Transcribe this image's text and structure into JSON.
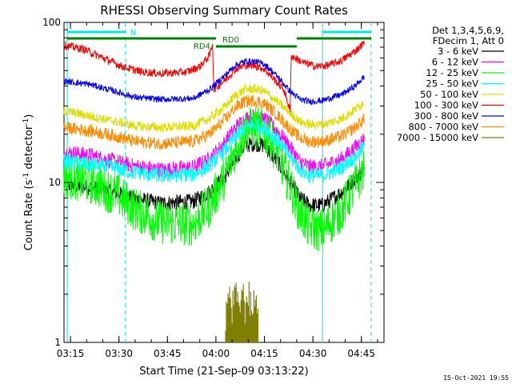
{
  "chart_data": {
    "type": "line",
    "title": "RHESSI Observing Summary Count Rates",
    "xlabel": "Start Time (21-Sep-09 03:13:22)",
    "ylabel_main": "Count Rate (s",
    "ylabel_sup1": "-1",
    "ylabel_mid": " detector",
    "ylabel_sup2": "-1",
    "ylabel_end": ")",
    "yscale": "log",
    "xlim": [
      "03:13",
      "04:52"
    ],
    "ylim": [
      1,
      100
    ],
    "x_ticks": [
      "03:15",
      "03:30",
      "03:45",
      "04:00",
      "04:15",
      "04:30",
      "04:45"
    ],
    "y_ticks": [
      "1",
      "10",
      "100"
    ],
    "legend_header": [
      "Det 1,3,4,5,6,9,",
      "FDecim 1, Att 0"
    ],
    "timestamp": "15-Oct-2021 19:55",
    "annotations": [
      {
        "label": "N",
        "kind": "night",
        "color": "#00e5e5"
      },
      {
        "label": "RD4",
        "kind": "attenuator state",
        "color": "#008000"
      },
      {
        "label": "RD0",
        "kind": "attenuator state",
        "color": "#008000"
      }
    ],
    "event_times": [
      "03:14",
      "03:32",
      "04:33",
      "04:48"
    ],
    "series": [
      {
        "name": "3 - 6 keV",
        "color": "#000000",
        "points": [
          [
            0,
            9.7
          ],
          [
            8,
            9.3
          ],
          [
            16,
            8.6
          ],
          [
            22,
            7.9
          ],
          [
            30,
            7.4
          ],
          [
            40,
            7.6
          ],
          [
            45,
            8.7
          ],
          [
            50,
            11
          ],
          [
            53,
            14
          ],
          [
            56,
            17
          ],
          [
            59,
            17.5
          ],
          [
            62,
            17
          ],
          [
            66,
            13.5
          ],
          [
            70,
            10
          ],
          [
            73,
            8
          ],
          [
            76,
            7.2
          ],
          [
            80,
            7.2
          ],
          [
            86,
            8.7
          ],
          [
            90,
            10.6
          ],
          [
            93,
            12
          ]
        ]
      },
      {
        "name": "6 - 12 keV",
        "color": "#ff00ff",
        "points": [
          [
            0,
            15.5
          ],
          [
            8,
            14.8
          ],
          [
            16,
            13.5
          ],
          [
            22,
            12.6
          ],
          [
            30,
            12
          ],
          [
            40,
            12.4
          ],
          [
            45,
            14
          ],
          [
            50,
            18
          ],
          [
            53,
            22
          ],
          [
            56,
            25
          ],
          [
            59,
            26
          ],
          [
            62,
            25
          ],
          [
            66,
            21
          ],
          [
            70,
            16.5
          ],
          [
            73,
            13.5
          ],
          [
            76,
            12.5
          ],
          [
            80,
            12.6
          ],
          [
            86,
            14
          ],
          [
            90,
            16.5
          ],
          [
            93,
            19
          ]
        ]
      },
      {
        "name": "12 - 25 keV",
        "color": "#00ff00",
        "points": [
          [
            0,
            11
          ],
          [
            8,
            10
          ],
          [
            16,
            8.5
          ],
          [
            22,
            6.8
          ],
          [
            30,
            5.6
          ],
          [
            40,
            5.5
          ],
          [
            45,
            7.2
          ],
          [
            50,
            11
          ],
          [
            53,
            16
          ],
          [
            56,
            21
          ],
          [
            59,
            22
          ],
          [
            62,
            21
          ],
          [
            66,
            15.5
          ],
          [
            70,
            9.5
          ],
          [
            73,
            6.4
          ],
          [
            76,
            5.2
          ],
          [
            80,
            5
          ],
          [
            86,
            6.8
          ],
          [
            90,
            9.5
          ],
          [
            93,
            12
          ]
        ]
      },
      {
        "name": "25 - 50 keV",
        "color": "#00ffff",
        "points": [
          [
            0,
            13.5
          ],
          [
            8,
            13
          ],
          [
            16,
            12.2
          ],
          [
            22,
            11.5
          ],
          [
            30,
            11
          ],
          [
            40,
            11.2
          ],
          [
            45,
            12.8
          ],
          [
            50,
            16
          ],
          [
            53,
            19.5
          ],
          [
            56,
            22
          ],
          [
            59,
            23
          ],
          [
            62,
            22
          ],
          [
            66,
            18.5
          ],
          [
            70,
            14.5
          ],
          [
            73,
            12
          ],
          [
            76,
            11
          ],
          [
            80,
            11
          ],
          [
            86,
            12.5
          ],
          [
            90,
            14.5
          ],
          [
            93,
            16.5
          ]
        ]
      },
      {
        "name": "50 - 100 keV",
        "color": "#dddd00",
        "points": [
          [
            0,
            28
          ],
          [
            8,
            26
          ],
          [
            16,
            24
          ],
          [
            22,
            22.5
          ],
          [
            30,
            22
          ],
          [
            40,
            22.5
          ],
          [
            45,
            25
          ],
          [
            50,
            30
          ],
          [
            53,
            35
          ],
          [
            56,
            38
          ],
          [
            59,
            38.5
          ],
          [
            62,
            37
          ],
          [
            66,
            32
          ],
          [
            70,
            27
          ],
          [
            73,
            24
          ],
          [
            76,
            23
          ],
          [
            80,
            23
          ],
          [
            86,
            25
          ],
          [
            90,
            28.5
          ],
          [
            93,
            32
          ]
        ]
      },
      {
        "name": "100 - 300 keV",
        "color": "#ff0000",
        "points": [
          [
            0,
            72
          ],
          [
            6,
            68
          ],
          [
            12,
            60
          ],
          [
            18,
            53
          ],
          [
            24,
            49
          ],
          [
            30,
            48
          ],
          [
            38,
            49
          ],
          [
            42,
            53
          ],
          [
            45,
            62
          ],
          [
            46,
            75
          ],
          [
            46.3,
            38
          ],
          [
            50,
            44
          ],
          [
            53,
            51
          ],
          [
            56,
            54
          ],
          [
            59,
            54
          ],
          [
            62,
            51
          ],
          [
            66,
            42
          ],
          [
            68,
            38
          ],
          [
            70,
            28
          ],
          [
            70.3,
            62
          ],
          [
            74,
            56
          ],
          [
            78,
            53
          ],
          [
            82,
            54
          ],
          [
            86,
            58
          ],
          [
            90,
            66
          ],
          [
            93,
            75
          ]
        ]
      },
      {
        "name": "300 - 800 keV",
        "color": "#0000ff",
        "points": [
          [
            0,
            43
          ],
          [
            8,
            41
          ],
          [
            16,
            37
          ],
          [
            22,
            34
          ],
          [
            30,
            33
          ],
          [
            40,
            33.5
          ],
          [
            45,
            38
          ],
          [
            50,
            47
          ],
          [
            53,
            54
          ],
          [
            56,
            57
          ],
          [
            59,
            57
          ],
          [
            62,
            55
          ],
          [
            66,
            46
          ],
          [
            70,
            37
          ],
          [
            73,
            33
          ],
          [
            76,
            32
          ],
          [
            80,
            32.5
          ],
          [
            86,
            35.5
          ],
          [
            90,
            40
          ],
          [
            93,
            46
          ]
        ]
      },
      {
        "name": "800 - 7000 keV",
        "color": "#ff8c00",
        "points": [
          [
            0,
            22
          ],
          [
            8,
            21
          ],
          [
            16,
            19.5
          ],
          [
            22,
            18
          ],
          [
            30,
            17.5
          ],
          [
            40,
            18
          ],
          [
            45,
            20
          ],
          [
            50,
            25
          ],
          [
            53,
            29.5
          ],
          [
            56,
            32
          ],
          [
            59,
            32.5
          ],
          [
            62,
            31
          ],
          [
            66,
            26.5
          ],
          [
            70,
            21.5
          ],
          [
            73,
            19
          ],
          [
            76,
            18
          ],
          [
            80,
            18
          ],
          [
            86,
            19.5
          ],
          [
            90,
            22
          ],
          [
            93,
            25
          ]
        ]
      },
      {
        "name": "7000 - 15000 keV",
        "color": "#808000",
        "points": [
          [
            50,
            1.5
          ],
          [
            51,
            2.05
          ],
          [
            52,
            1.6
          ],
          [
            53,
            2.1
          ],
          [
            54,
            1.55
          ],
          [
            55,
            2.15
          ],
          [
            56,
            1.7
          ],
          [
            57,
            2.1
          ],
          [
            58,
            1.55
          ],
          [
            59,
            2.05
          ],
          [
            60,
            1.5
          ]
        ]
      }
    ]
  }
}
